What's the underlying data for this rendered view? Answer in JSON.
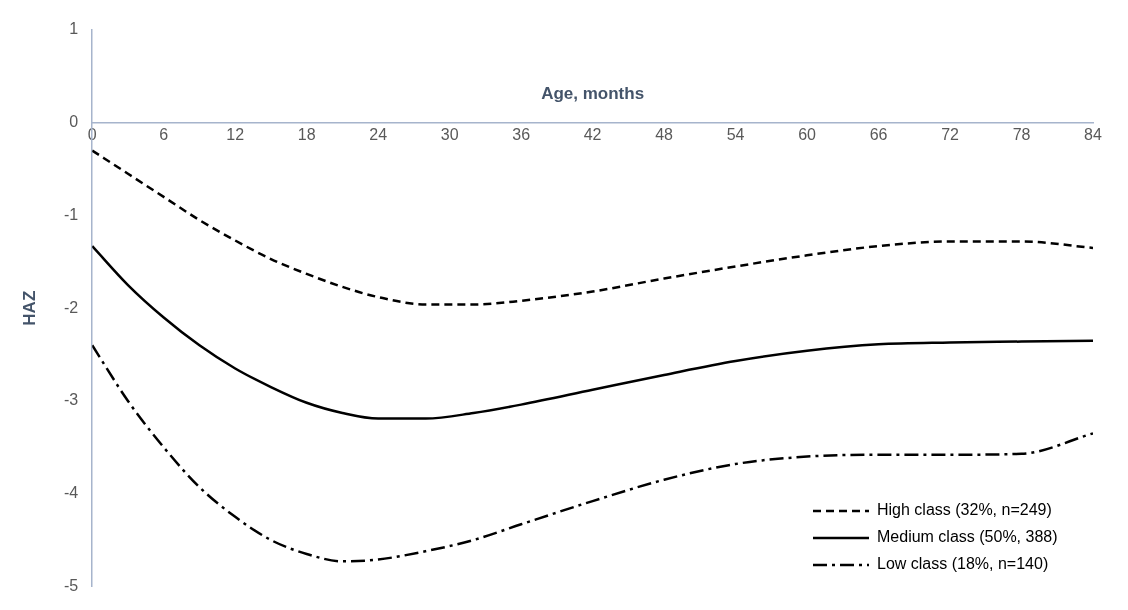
{
  "chart_data": {
    "type": "line",
    "xlabel": "Age, months",
    "ylabel": "HAZ",
    "xlim": [
      0,
      84
    ],
    "xticks": [
      0,
      6,
      12,
      18,
      24,
      30,
      36,
      42,
      48,
      54,
      60,
      66,
      72,
      78,
      84
    ],
    "ylim": [
      -5,
      1
    ],
    "yticks": [
      -5,
      -4,
      -3,
      -2,
      -1,
      0,
      1
    ],
    "grid": false,
    "legend": "bottom right",
    "marker": "none",
    "x": [
      0,
      3,
      6,
      9,
      12,
      15,
      18,
      21,
      24,
      28,
      32,
      36,
      42,
      48,
      54,
      60,
      66,
      72,
      78,
      84
    ],
    "series": [
      {
        "name": "High class (32%, n=249)",
        "color": "#000000",
        "line_style": "dashed",
        "values": [
          -0.3,
          -0.55,
          -0.8,
          -1.05,
          -1.27,
          -1.47,
          -1.63,
          -1.77,
          -1.88,
          -1.96,
          -1.96,
          -1.92,
          -1.82,
          -1.68,
          -1.55,
          -1.43,
          -1.33,
          -1.28,
          -1.28,
          -1.35
        ]
      },
      {
        "name": "Medium class (50%, 388)",
        "color": "#000000",
        "line_style": "solid",
        "values": [
          -1.33,
          -1.75,
          -2.1,
          -2.4,
          -2.65,
          -2.85,
          -3.02,
          -3.13,
          -3.19,
          -3.19,
          -3.13,
          -3.04,
          -2.88,
          -2.72,
          -2.57,
          -2.46,
          -2.39,
          -2.37,
          -2.36,
          -2.35
        ]
      },
      {
        "name": "Low class (18%, n=140)",
        "color": "#000000",
        "line_style": "dashdot",
        "values": [
          -2.4,
          -3.0,
          -3.5,
          -3.93,
          -4.25,
          -4.5,
          -4.65,
          -4.73,
          -4.71,
          -4.62,
          -4.5,
          -4.33,
          -4.08,
          -3.85,
          -3.68,
          -3.6,
          -3.58,
          -3.58,
          -3.57,
          -3.35
        ]
      }
    ]
  }
}
